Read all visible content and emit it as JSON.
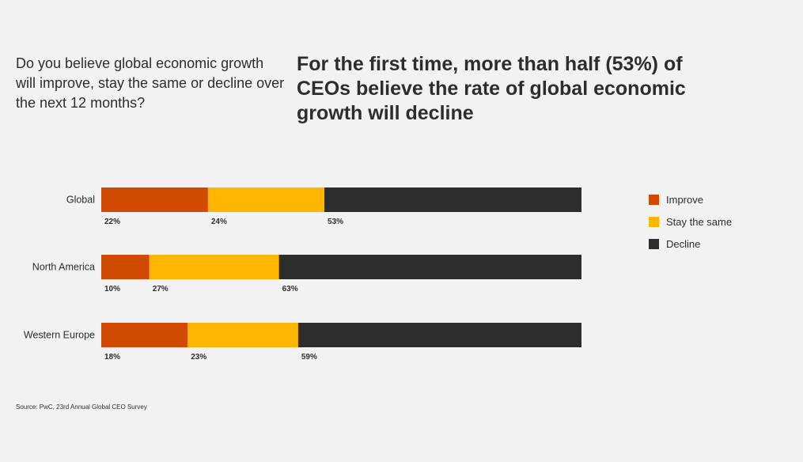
{
  "question": "Do you believe global economic growth will improve, stay the same or decline over the next 12 months?",
  "headline": "For the first time, more than half (53%) of CEOs believe the rate of global economic growth will decline",
  "source": "Source: PwC, 23rd Annual Global CEO Survey",
  "colors": {
    "Improve": "#d04a02",
    "Stay the same": "#ffb600",
    "Decline": "#2d2d2d"
  },
  "chart_data": {
    "type": "bar",
    "orientation": "horizontal",
    "stacked": true,
    "categories": [
      "Global",
      "North America",
      "Western Europe"
    ],
    "series": [
      {
        "name": "Improve",
        "values": [
          22,
          10,
          18
        ]
      },
      {
        "name": "Stay the same",
        "values": [
          24,
          27,
          23
        ]
      },
      {
        "name": "Decline",
        "values": [
          53,
          63,
          59
        ]
      }
    ],
    "value_labels": [
      [
        "22%",
        "24%",
        "53%"
      ],
      [
        "10%",
        "27%",
        "63%"
      ],
      [
        "18%",
        "23%",
        "59%"
      ]
    ],
    "legend": {
      "placement": "right",
      "entries": [
        "Improve",
        "Stay the same",
        "Decline"
      ]
    },
    "grid": false
  }
}
